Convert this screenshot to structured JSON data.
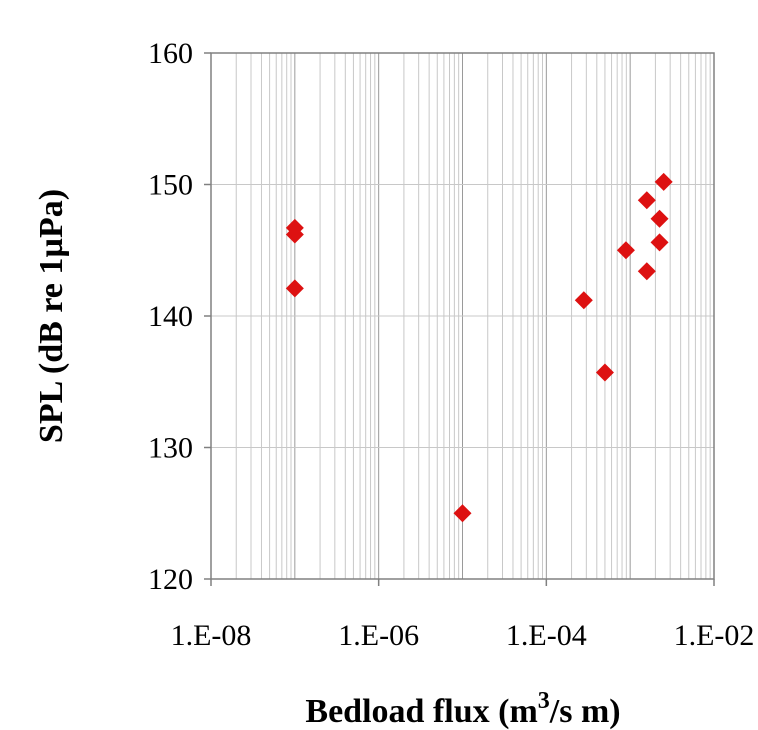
{
  "chart_data": {
    "type": "scatter",
    "xlabel": "Bedload flux (m",
    "xlabel_sup": "3",
    "xlabel_tail": "/s m)",
    "ylabel": "SPL (dB re 1µPa)",
    "xscale": "log",
    "xlim": [
      1e-08,
      0.01
    ],
    "ylim": [
      120,
      160
    ],
    "x_ticks": [
      1e-08,
      1e-06,
      0.0001,
      0.01
    ],
    "x_tick_labels": [
      "1.E-08",
      "1.E-06",
      "1.E-04",
      "1.E-02"
    ],
    "y_ticks": [
      120,
      130,
      140,
      150,
      160
    ],
    "y_tick_labels": [
      "120",
      "130",
      "140",
      "150",
      "160"
    ],
    "grid": true,
    "legend": "none",
    "marker_color": "#dd1111",
    "marker": "diamond",
    "points": [
      {
        "x": 1e-07,
        "y": 146.7
      },
      {
        "x": 1e-07,
        "y": 146.2
      },
      {
        "x": 1e-07,
        "y": 142.1
      },
      {
        "x": 1e-05,
        "y": 125.0
      },
      {
        "x": 0.00028,
        "y": 141.2
      },
      {
        "x": 0.0005,
        "y": 135.7
      },
      {
        "x": 0.00089,
        "y": 145.0
      },
      {
        "x": 0.00158,
        "y": 148.8
      },
      {
        "x": 0.00158,
        "y": 143.4
      },
      {
        "x": 0.00224,
        "y": 147.4
      },
      {
        "x": 0.00224,
        "y": 145.6
      },
      {
        "x": 0.00251,
        "y": 150.2
      }
    ]
  }
}
